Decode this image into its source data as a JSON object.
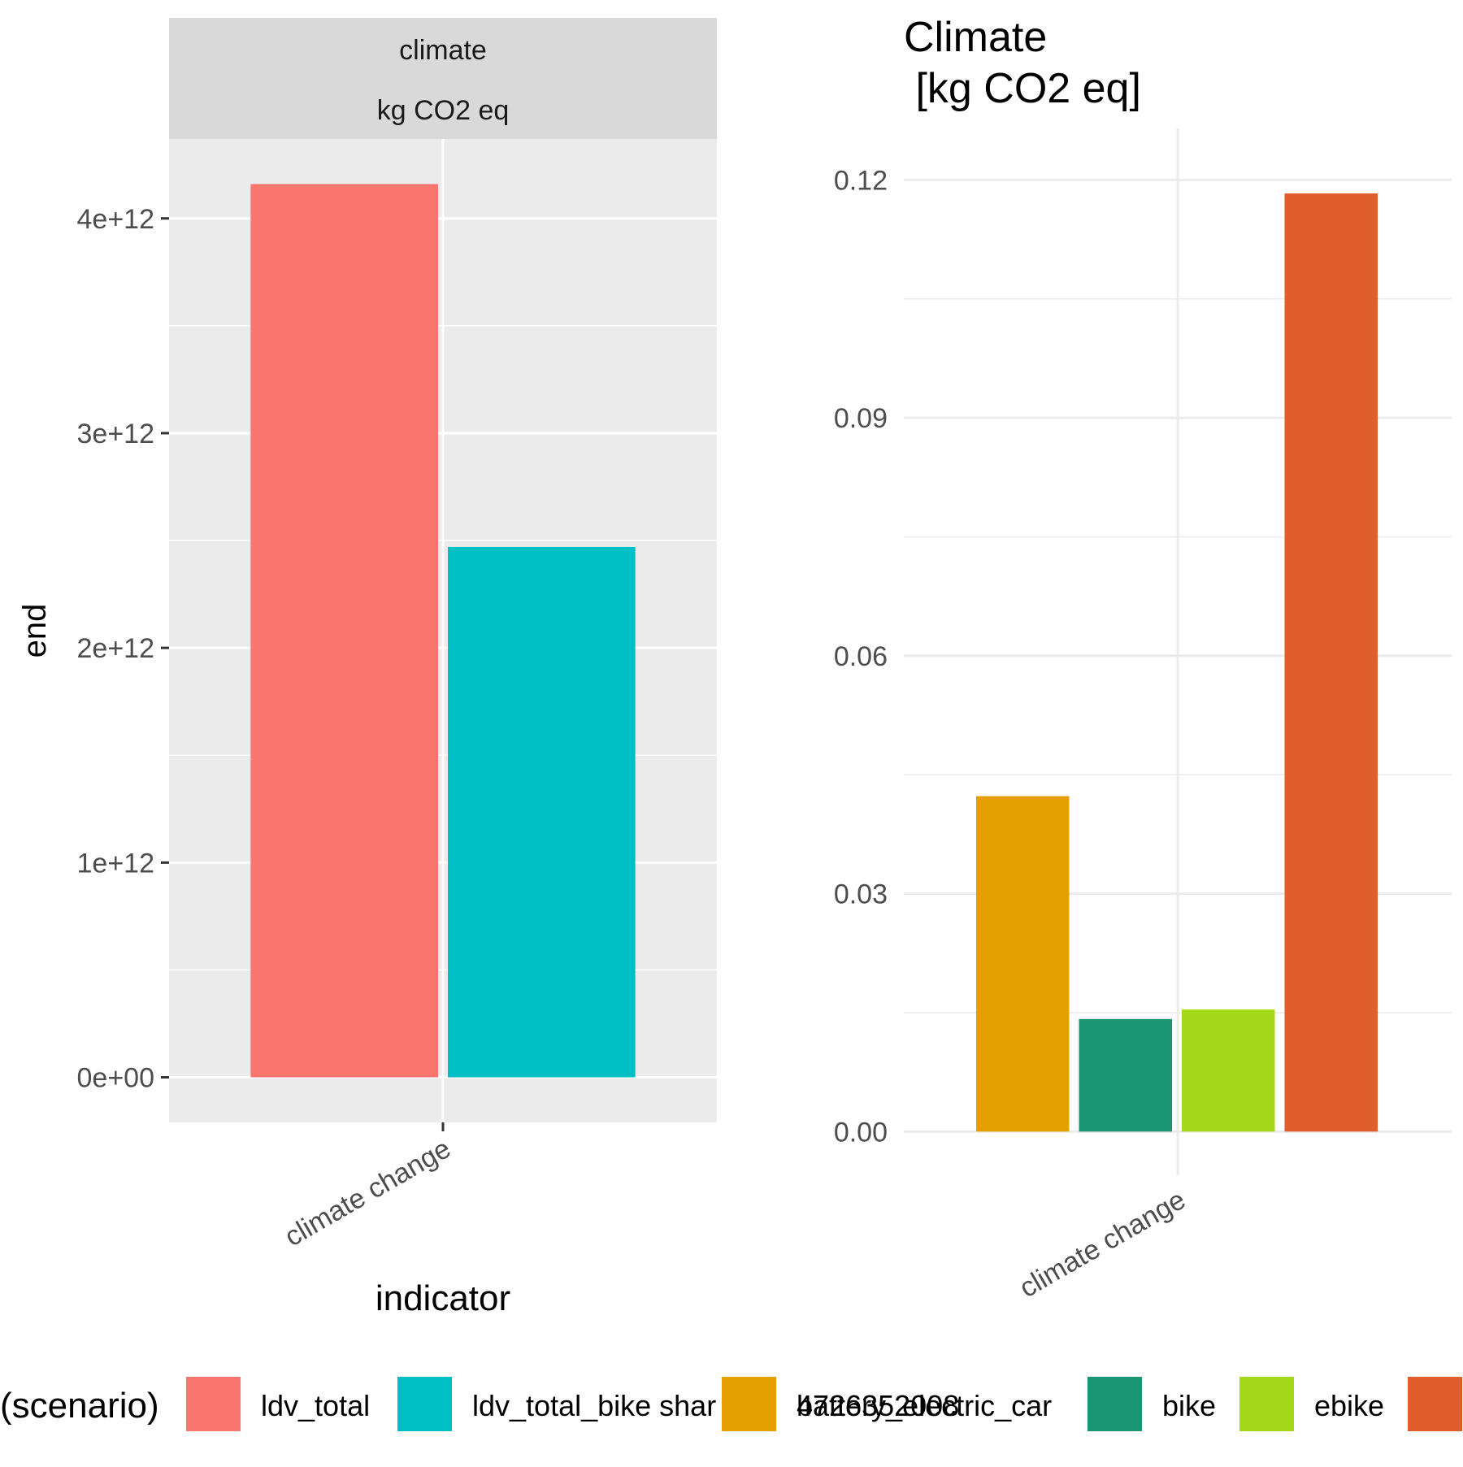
{
  "chart_data": [
    {
      "type": "bar",
      "facet_strip": [
        "climate",
        "kg CO2 eq"
      ],
      "xlabel": "indicator",
      "ylabel": "end",
      "categories": [
        "climate change"
      ],
      "series": [
        {
          "name": "ldv_total",
          "values": [
            4160000000000.0
          ],
          "color": "#F8766D"
        },
        {
          "name": "ldv_total_bike shar",
          "values": [
            2470000000000.0
          ],
          "color": "#00BFC4"
        }
      ],
      "ylim": [
        -210000000000.0,
        4370000000000.0
      ],
      "yticks": [
        0,
        1000000000000.0,
        2000000000000.0,
        3000000000000.0,
        4000000000000.0
      ],
      "ytick_labels": [
        "0e+00",
        "1e+12",
        "2e+12",
        "3e+12",
        "4e+12"
      ],
      "xtick_labels": [
        "climate change"
      ],
      "grid": true,
      "panel_background": "#EBEBEB"
    },
    {
      "type": "bar",
      "title": "Climate\n [kg CO2 eq]",
      "categories": [
        "climate change"
      ],
      "series": [
        {
          "name": "battery_electric_car",
          "values": [
            0.0423
          ],
          "color": "#E69F00"
        },
        {
          "name": "bike",
          "values": [
            0.0142
          ],
          "color": "#1B9672"
        },
        {
          "name": "ebike",
          "values": [
            0.0154
          ],
          "color": "#A4D81B"
        },
        {
          "name": "",
          "values": [
            0.1183
          ],
          "color": "#E15E2C"
        }
      ],
      "ylim": [
        -0.0055,
        0.1265
      ],
      "yticks": [
        0,
        0.03,
        0.06,
        0.09,
        0.12
      ],
      "ytick_labels": [
        "0.00",
        "0.03",
        "0.06",
        "0.09",
        "0.12"
      ],
      "xtick_labels": [
        "climate change"
      ],
      "grid": true,
      "panel_background": "#FFFFFF"
    }
  ],
  "legend": {
    "title": "(scenario)",
    "items": [
      {
        "label": "ldv_total",
        "color": "#F8766D"
      },
      {
        "label": "ldv_total_bike shar",
        "color": "#00BFC4"
      },
      {
        "label": "4726352008",
        "color": "#E69F00",
        "overlay_label": "battery_electric_car"
      },
      {
        "label": "bike",
        "color": "#1B9672"
      },
      {
        "label": "ebike",
        "color": "#A4D81B"
      },
      {
        "label": "",
        "color": "#E15E2C"
      }
    ]
  }
}
